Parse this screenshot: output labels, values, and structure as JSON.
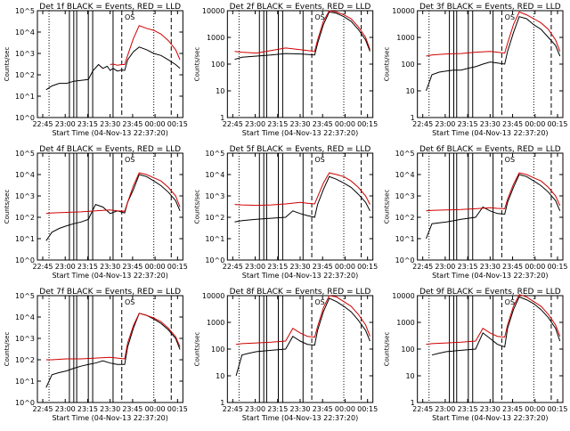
{
  "chart_data": [
    {
      "type": "line",
      "title": "Det 1f BLACK = Events, RED = LLD",
      "xlabel": "Start Time (04-Nov-13 22:37:20)",
      "ylabel": "Counts/sec",
      "yscale": "log",
      "ylim": [
        1,
        100000
      ],
      "y_ticks": [
        "10^0",
        "10^1",
        "10^2",
        "10^3",
        "10^4",
        "10^5"
      ],
      "x_ticks": [
        "22:45",
        "23:00",
        "23:15",
        "23:30",
        "23:45",
        "00:00",
        "00:15"
      ],
      "grid": false,
      "annotation": "OS",
      "series": [
        {
          "color": "#000000",
          "x": [
            0.06,
            0.1,
            0.15,
            0.2,
            0.25,
            0.3,
            0.35,
            0.38,
            0.42,
            0.45,
            0.48,
            0.5,
            0.52,
            0.55,
            0.58,
            0.6,
            0.62,
            0.66,
            0.7,
            0.75,
            0.8,
            0.85,
            0.9,
            0.95,
            0.98
          ],
          "y": [
            20,
            30,
            40,
            40,
            50,
            55,
            60,
            150,
            300,
            200,
            250,
            160,
            200,
            150,
            170,
            160,
            500,
            1200,
            2000,
            1500,
            1000,
            800,
            500,
            300,
            200
          ]
        },
        {
          "color": "#d00000",
          "x": [
            0.5,
            0.52,
            0.55,
            0.58,
            0.6,
            0.62,
            0.66,
            0.7,
            0.75,
            0.8,
            0.85,
            0.9,
            0.95,
            0.98
          ],
          "y": [
            300,
            320,
            280,
            300,
            300,
            800,
            5000,
            20000,
            15000,
            12000,
            8000,
            4000,
            1500,
            500
          ]
        }
      ]
    },
    {
      "type": "line",
      "title": "Det 2f BLACK = Events, RED = LLD",
      "xlabel": "Start Time (04-Nov-13 22:37:20)",
      "ylabel": "Counts/sec",
      "yscale": "log",
      "ylim": [
        1,
        10000
      ],
      "y_ticks": [
        "1",
        "10",
        "100",
        "1000",
        "10000"
      ],
      "x_ticks": [
        "22:45",
        "23:00",
        "23:15",
        "23:30",
        "23:45",
        "00:00",
        "00:15"
      ],
      "grid": false,
      "annotation": "OS",
      "series": [
        {
          "color": "#000000",
          "x": [
            0.05,
            0.1,
            0.2,
            0.3,
            0.4,
            0.5,
            0.55,
            0.6,
            0.62,
            0.66,
            0.7,
            0.75,
            0.8,
            0.85,
            0.9,
            0.95,
            0.98
          ],
          "y": [
            150,
            180,
            200,
            220,
            250,
            240,
            230,
            220,
            600,
            3000,
            9000,
            8000,
            6000,
            4000,
            2000,
            800,
            300
          ]
        },
        {
          "color": "#d00000",
          "x": [
            0.05,
            0.1,
            0.2,
            0.3,
            0.4,
            0.5,
            0.55,
            0.6,
            0.62,
            0.66,
            0.7,
            0.75,
            0.8,
            0.85,
            0.9,
            0.95,
            0.98
          ],
          "y": [
            300,
            280,
            260,
            320,
            400,
            350,
            320,
            300,
            800,
            4000,
            10000,
            9000,
            7000,
            5000,
            2500,
            1000,
            350
          ]
        }
      ]
    },
    {
      "type": "line",
      "title": "Det 3f BLACK = Events, RED = LLD",
      "xlabel": "Start Time (04-Nov-13 22:37:20)",
      "ylabel": "Counts/sec",
      "yscale": "log",
      "ylim": [
        1,
        10000
      ],
      "y_ticks": [
        "1",
        "10",
        "100",
        "1000",
        "10000"
      ],
      "x_ticks": [
        "22:45",
        "23:00",
        "23:15",
        "23:30",
        "23:45",
        "00:00",
        "00:15"
      ],
      "grid": false,
      "annotation": "OS",
      "series": [
        {
          "color": "#000000",
          "x": [
            0.06,
            0.1,
            0.15,
            0.2,
            0.25,
            0.3,
            0.35,
            0.4,
            0.45,
            0.5,
            0.55,
            0.6,
            0.62,
            0.66,
            0.7,
            0.75,
            0.8,
            0.85,
            0.9,
            0.95,
            0.98
          ],
          "y": [
            10,
            40,
            50,
            55,
            60,
            60,
            70,
            80,
            100,
            120,
            110,
            100,
            300,
            1500,
            6000,
            5000,
            3000,
            2000,
            1000,
            500,
            200
          ]
        },
        {
          "color": "#d00000",
          "x": [
            0.06,
            0.1,
            0.15,
            0.2,
            0.3,
            0.4,
            0.5,
            0.55,
            0.6,
            0.62,
            0.66,
            0.7,
            0.75,
            0.8,
            0.85,
            0.9,
            0.95,
            0.98
          ],
          "y": [
            200,
            220,
            230,
            240,
            250,
            280,
            300,
            280,
            260,
            600,
            3000,
            9000,
            7000,
            5000,
            3500,
            2000,
            800,
            300
          ]
        }
      ]
    },
    {
      "type": "line",
      "title": "Det 4f BLACK = Events, RED = LLD",
      "xlabel": "Start Time (04-Nov-13 22:37:20)",
      "ylabel": "Counts/sec",
      "yscale": "log",
      "ylim": [
        1,
        100000
      ],
      "y_ticks": [
        "10^0",
        "10^1",
        "10^2",
        "10^3",
        "10^4",
        "10^5"
      ],
      "x_ticks": [
        "22:45",
        "23:00",
        "23:15",
        "23:30",
        "23:45",
        "00:00",
        "00:15"
      ],
      "grid": false,
      "annotation": "OS",
      "series": [
        {
          "color": "#000000",
          "x": [
            0.06,
            0.1,
            0.15,
            0.2,
            0.25,
            0.3,
            0.35,
            0.4,
            0.45,
            0.5,
            0.55,
            0.6,
            0.62,
            0.66,
            0.7,
            0.75,
            0.8,
            0.85,
            0.9,
            0.95,
            0.98
          ],
          "y": [
            8,
            20,
            30,
            40,
            50,
            60,
            80,
            400,
            300,
            150,
            200,
            160,
            500,
            2000,
            10000,
            8000,
            5000,
            3000,
            1500,
            600,
            200
          ]
        },
        {
          "color": "#d00000",
          "x": [
            0.06,
            0.1,
            0.2,
            0.3,
            0.4,
            0.5,
            0.55,
            0.6,
            0.62,
            0.66,
            0.7,
            0.75,
            0.8,
            0.85,
            0.9,
            0.95,
            0.98
          ],
          "y": [
            150,
            160,
            170,
            180,
            200,
            220,
            200,
            190,
            500,
            3000,
            12000,
            10000,
            7000,
            5000,
            2500,
            1000,
            300
          ]
        }
      ]
    },
    {
      "type": "line",
      "title": "Det 5f BLACK = Events, RED = LLD",
      "xlabel": "Start Time (04-Nov-13 22:37:20)",
      "ylabel": "Counts/sec",
      "yscale": "log",
      "ylim": [
        1,
        100000
      ],
      "y_ticks": [
        "10^0",
        "10^1",
        "10^2",
        "10^3",
        "10^4",
        "10^5"
      ],
      "x_ticks": [
        "22:45",
        "23:00",
        "23:15",
        "23:30",
        "23:45",
        "00:00",
        "00:15"
      ],
      "grid": false,
      "annotation": "OS",
      "series": [
        {
          "color": "#000000",
          "x": [
            0.05,
            0.1,
            0.2,
            0.3,
            0.4,
            0.45,
            0.5,
            0.55,
            0.6,
            0.62,
            0.66,
            0.7,
            0.75,
            0.8,
            0.85,
            0.9,
            0.95,
            0.98
          ],
          "y": [
            60,
            70,
            80,
            90,
            100,
            200,
            150,
            120,
            100,
            400,
            2000,
            8000,
            6000,
            4000,
            2500,
            1200,
            500,
            200
          ]
        },
        {
          "color": "#d00000",
          "x": [
            0.05,
            0.1,
            0.2,
            0.3,
            0.4,
            0.5,
            0.55,
            0.6,
            0.62,
            0.66,
            0.7,
            0.75,
            0.8,
            0.85,
            0.9,
            0.95,
            0.98
          ],
          "y": [
            400,
            380,
            360,
            380,
            420,
            500,
            450,
            420,
            900,
            4000,
            12000,
            10000,
            8000,
            5000,
            2500,
            1000,
            400
          ]
        }
      ]
    },
    {
      "type": "line",
      "title": "Det 6f BLACK = Events, RED = LLD",
      "xlabel": "Start Time (04-Nov-13 22:37:20)",
      "ylabel": "Counts/sec",
      "yscale": "log",
      "ylim": [
        1,
        100000
      ],
      "y_ticks": [
        "10^0",
        "10^1",
        "10^2",
        "10^3",
        "10^4",
        "10^5"
      ],
      "x_ticks": [
        "22:45",
        "23:00",
        "23:15",
        "23:30",
        "23:45",
        "00:00",
        "00:15"
      ],
      "grid": false,
      "annotation": "OS",
      "series": [
        {
          "color": "#000000",
          "x": [
            0.06,
            0.1,
            0.2,
            0.3,
            0.4,
            0.45,
            0.5,
            0.55,
            0.6,
            0.62,
            0.66,
            0.7,
            0.75,
            0.8,
            0.85,
            0.9,
            0.95,
            0.98
          ],
          "y": [
            10,
            50,
            60,
            80,
            100,
            300,
            200,
            150,
            140,
            500,
            2500,
            10000,
            8000,
            5000,
            3000,
            1500,
            600,
            200
          ]
        },
        {
          "color": "#d00000",
          "x": [
            0.06,
            0.1,
            0.2,
            0.3,
            0.4,
            0.5,
            0.55,
            0.6,
            0.62,
            0.66,
            0.7,
            0.75,
            0.8,
            0.85,
            0.9,
            0.95,
            0.98
          ],
          "y": [
            200,
            210,
            220,
            230,
            250,
            280,
            260,
            250,
            700,
            3500,
            12000,
            10000,
            7000,
            5000,
            2500,
            1000,
            350
          ]
        }
      ]
    },
    {
      "type": "line",
      "title": "Det 7f BLACK = Events, RED = LLD",
      "xlabel": "Start Time (04-Nov-13 22:37:20)",
      "ylabel": "Counts/sec",
      "yscale": "log",
      "ylim": [
        1,
        100000
      ],
      "y_ticks": [
        "10^0",
        "10^1",
        "10^2",
        "10^3",
        "10^4",
        "10^5"
      ],
      "x_ticks": [
        "22:45",
        "23:00",
        "23:15",
        "23:30",
        "23:45",
        "00:00",
        "00:15"
      ],
      "grid": false,
      "annotation": "OS",
      "series": [
        {
          "color": "#000000",
          "x": [
            0.06,
            0.1,
            0.15,
            0.2,
            0.25,
            0.3,
            0.35,
            0.4,
            0.45,
            0.5,
            0.55,
            0.6,
            0.62,
            0.66,
            0.7,
            0.75,
            0.8,
            0.85,
            0.9,
            0.95,
            0.98
          ],
          "y": [
            5,
            20,
            25,
            30,
            40,
            50,
            60,
            70,
            90,
            70,
            60,
            60,
            400,
            3000,
            15000,
            12000,
            8000,
            5000,
            2500,
            1000,
            300
          ]
        },
        {
          "color": "#d00000",
          "x": [
            0.06,
            0.1,
            0.2,
            0.3,
            0.4,
            0.5,
            0.55,
            0.6,
            0.62,
            0.66,
            0.7,
            0.75,
            0.8,
            0.85,
            0.9,
            0.95,
            0.98
          ],
          "y": [
            100,
            100,
            110,
            110,
            120,
            130,
            120,
            110,
            600,
            4000,
            15000,
            12000,
            9000,
            6000,
            3000,
            1200,
            400
          ]
        }
      ]
    },
    {
      "type": "line",
      "title": "Det 8f BLACK = Events, RED = LLD",
      "xlabel": "Start Time (04-Nov-13 22:37:20)",
      "ylabel": "Counts/sec",
      "yscale": "log",
      "ylim": [
        1,
        10000
      ],
      "y_ticks": [
        "1",
        "10",
        "100",
        "1000",
        "10000"
      ],
      "x_ticks": [
        "22:45",
        "23:00",
        "23:15",
        "23:30",
        "23:45",
        "00:00",
        "00:15"
      ],
      "grid": false,
      "annotation": "OS",
      "series": [
        {
          "color": "#000000",
          "x": [
            0.06,
            0.1,
            0.15,
            0.2,
            0.3,
            0.4,
            0.45,
            0.5,
            0.55,
            0.6,
            0.62,
            0.66,
            0.7,
            0.75,
            0.8,
            0.85,
            0.9,
            0.95,
            0.98
          ],
          "y": [
            10,
            60,
            70,
            80,
            90,
            100,
            300,
            200,
            150,
            140,
            500,
            2500,
            8000,
            6000,
            4000,
            2500,
            1200,
            500,
            200
          ]
        },
        {
          "color": "#d00000",
          "x": [
            0.06,
            0.1,
            0.2,
            0.3,
            0.4,
            0.45,
            0.5,
            0.55,
            0.6,
            0.62,
            0.66,
            0.7,
            0.75,
            0.8,
            0.85,
            0.9,
            0.95,
            0.98
          ],
          "y": [
            150,
            160,
            170,
            180,
            200,
            600,
            400,
            300,
            280,
            700,
            3500,
            10000,
            9000,
            6000,
            4000,
            2000,
            800,
            300
          ]
        }
      ]
    },
    {
      "type": "line",
      "title": "Det 9f BLACK = Events, RED = LLD",
      "xlabel": "Start Time (04-Nov-13 22:37:20)",
      "ylabel": "Counts/sec",
      "yscale": "log",
      "ylim": [
        1,
        10000
      ],
      "y_ticks": [
        "1",
        "10",
        "100",
        "1000",
        "10000"
      ],
      "x_ticks": [
        "22:45",
        "23:00",
        "23:15",
        "23:30",
        "23:45",
        "00:00",
        "00:15"
      ],
      "grid": false,
      "annotation": "OS",
      "series": [
        {
          "color": "#000000",
          "x": [
            0.1,
            0.15,
            0.2,
            0.3,
            0.4,
            0.45,
            0.5,
            0.55,
            0.6,
            0.62,
            0.66,
            0.7,
            0.75,
            0.8,
            0.85,
            0.9,
            0.95,
            0.98
          ],
          "y": [
            60,
            70,
            80,
            90,
            100,
            400,
            250,
            150,
            120,
            600,
            3000,
            9000,
            7000,
            5000,
            3000,
            1500,
            600,
            200
          ]
        },
        {
          "color": "#d00000",
          "x": [
            0.06,
            0.1,
            0.2,
            0.3,
            0.4,
            0.45,
            0.5,
            0.55,
            0.6,
            0.62,
            0.66,
            0.7,
            0.75,
            0.8,
            0.85,
            0.9,
            0.95,
            0.98
          ],
          "y": [
            150,
            160,
            170,
            180,
            200,
            600,
            400,
            300,
            280,
            800,
            4000,
            11000,
            9000,
            6000,
            4000,
            2000,
            800,
            300
          ]
        }
      ]
    }
  ]
}
